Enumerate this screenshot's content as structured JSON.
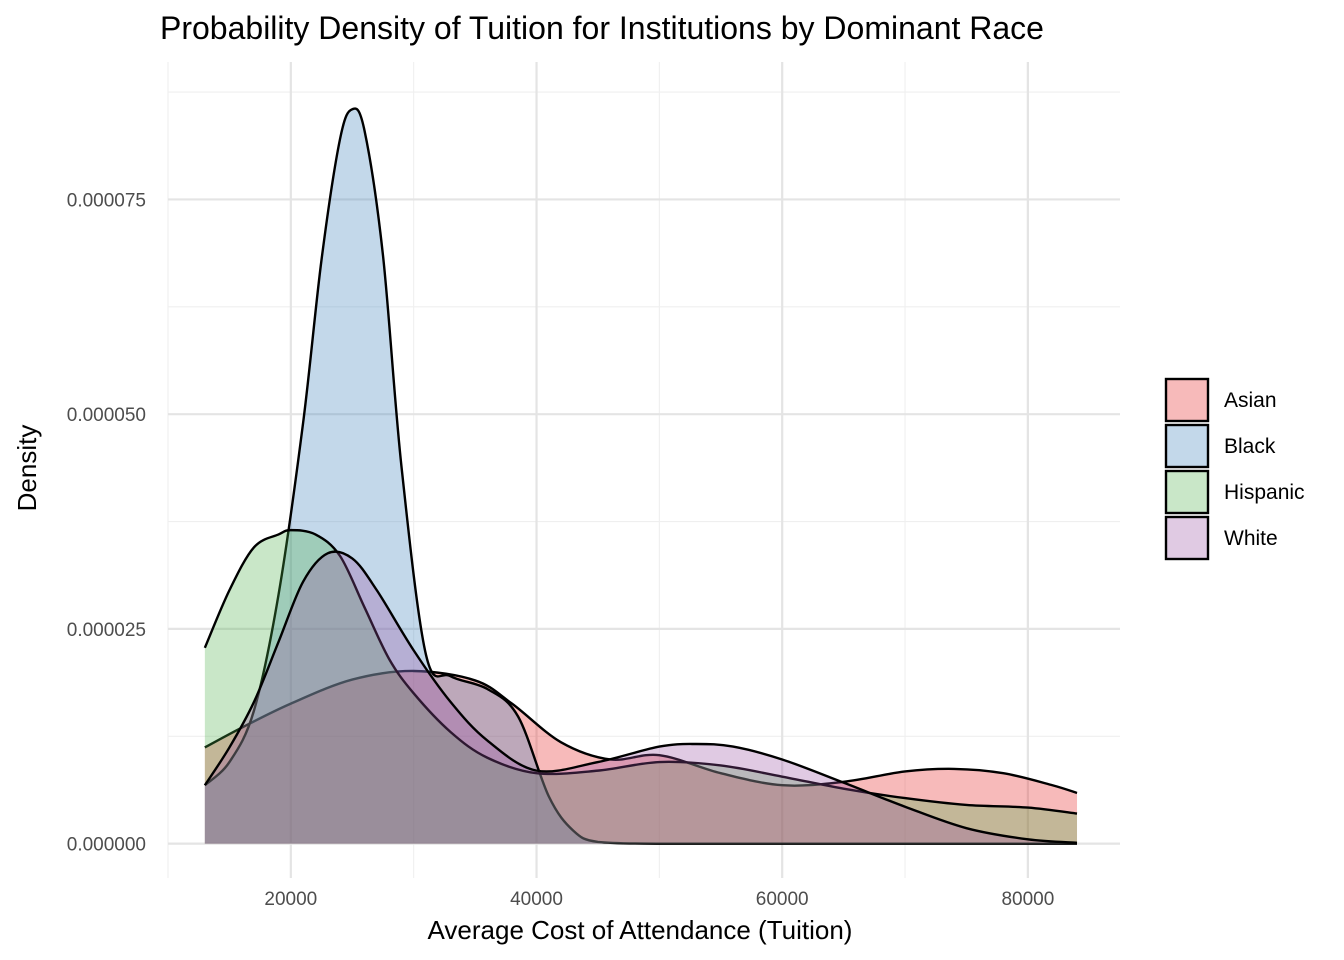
{
  "chart_data": {
    "type": "area",
    "title": "Probability Density of Tuition for Institutions by Dominant Race",
    "xlabel": "Average Cost of Attendance (Tuition)",
    "ylabel": "Density",
    "xlim": [
      10000,
      87500
    ],
    "ylim": [
      -4e-06,
      9.1e-05
    ],
    "x_ticks": [
      20000,
      40000,
      60000,
      80000
    ],
    "x_tick_labels": [
      "20000",
      "40000",
      "60000",
      "80000"
    ],
    "x_minor_ticks": [
      10000,
      30000,
      50000,
      70000
    ],
    "y_ticks": [
      0,
      2.5e-05,
      5e-05,
      7.5e-05
    ],
    "y_tick_labels": [
      "0.000000",
      "0.000025",
      "0.000050",
      "0.000075"
    ],
    "y_minor_ticks": [
      1.25e-05,
      3.75e-05,
      6.25e-05,
      8.75e-05
    ],
    "grid": true,
    "legend_position": "right",
    "series": [
      {
        "name": "Asian",
        "color": "#e41a1c",
        "x": [
          13000,
          16000,
          20000,
          25000,
          30000,
          35000,
          38000,
          42000,
          46000,
          50000,
          55000,
          60000,
          65000,
          70000,
          74000,
          78000,
          82000,
          84000
        ],
        "y": [
          1.12e-05,
          1.35e-05,
          1.63e-05,
          1.91e-05,
          2.01e-05,
          1.9e-05,
          1.63e-05,
          1.18e-05,
          9.8e-06,
          1.03e-05,
          8.2e-06,
          6.8e-06,
          7.2e-06,
          8.4e-06,
          8.7e-06,
          8.2e-06,
          6.8e-06,
          5.9e-06
        ]
      },
      {
        "name": "Black",
        "color": "#377eb8",
        "x": [
          13000,
          15000,
          17000,
          19000,
          21000,
          22500,
          24000,
          25000,
          26000,
          27500,
          29000,
          31000,
          33000,
          36000,
          38500,
          41000,
          43000,
          45000,
          50000,
          60000,
          70000,
          80000,
          84000
        ],
        "y": [
          6.8e-06,
          9.5e-06,
          1.55e-05,
          2.9e-05,
          4.9e-05,
          6.8e-05,
          8.2e-05,
          8.55e-05,
          8.3e-05,
          6.85e-05,
          4.4e-05,
          2.2e-05,
          1.95e-05,
          1.8e-05,
          1.48e-05,
          5.5e-06,
          1.5e-06,
          2e-07,
          0,
          0,
          0,
          0,
          0
        ]
      },
      {
        "name": "Hispanic",
        "color": "#4daf4a",
        "x": [
          13000,
          15000,
          17000,
          19000,
          20000,
          22000,
          24000,
          26000,
          28000,
          30000,
          33000,
          36000,
          40000,
          45000,
          50000,
          55000,
          60000,
          65000,
          70000,
          75000,
          80000,
          84000
        ],
        "y": [
          2.28e-05,
          2.95e-05,
          3.45e-05,
          3.6e-05,
          3.65e-05,
          3.6e-05,
          3.35e-05,
          2.75e-05,
          2.15e-05,
          1.75e-05,
          1.3e-05,
          1e-05,
          8.2e-06,
          8.5e-06,
          9.5e-06,
          9.1e-06,
          7.8e-06,
          6.4e-06,
          5.3e-06,
          4.5e-06,
          4.2e-06,
          3.5e-06
        ]
      },
      {
        "name": "White",
        "color": "#984ea3",
        "x": [
          13000,
          15000,
          17000,
          19000,
          21000,
          23000,
          25000,
          27000,
          30000,
          33000,
          36000,
          40000,
          45000,
          50000,
          53000,
          56000,
          60000,
          65000,
          70000,
          75000,
          80000,
          84000
        ],
        "y": [
          6.8e-06,
          1.12e-05,
          1.65e-05,
          2.35e-05,
          3.05e-05,
          3.38e-05,
          3.32e-05,
          2.95e-05,
          2.25e-05,
          1.65e-05,
          1.2e-05,
          8.5e-06,
          9.5e-06,
          1.13e-05,
          1.16e-05,
          1.13e-05,
          9.8e-06,
          7.1e-06,
          4.3e-06,
          1.8e-06,
          5e-07,
          1e-07
        ]
      }
    ]
  }
}
